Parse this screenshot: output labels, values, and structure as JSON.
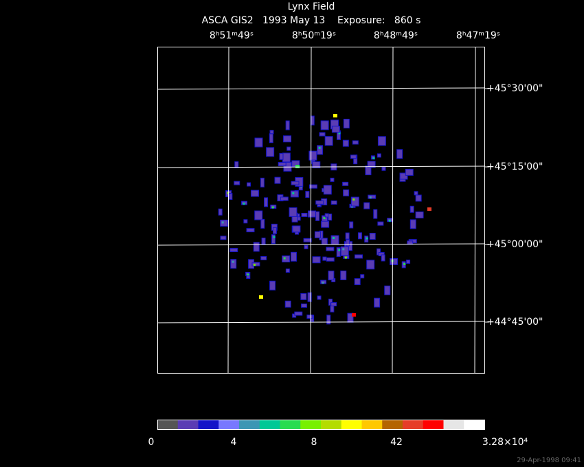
{
  "header": {
    "title": "Lynx Field",
    "subtitle": "ASCA GIS2   1993 May 13    Exposure:   860 s"
  },
  "ra_labels": [
    "8ʰ51ᵐ49ˢ",
    "8ʰ50ᵐ19ˢ",
    "8ʰ48ᵐ49ˢ",
    "8ʰ47ᵐ19ˢ"
  ],
  "dec_labels": [
    "+45°30'00\"",
    "+45°15'00\"",
    "+45°00'00\"",
    "+44°45'00\""
  ],
  "colorbar": {
    "colors": [
      "#555555",
      "#5a3cb4",
      "#1414c8",
      "#7878ff",
      "#3c96b4",
      "#00c896",
      "#28dc50",
      "#78f000",
      "#b4dc00",
      "#ffff00",
      "#ffc800",
      "#b46400",
      "#e63c28",
      "#ff0000",
      "#e6e6e6",
      "#ffffff"
    ],
    "labels": [
      "0",
      "4",
      "8",
      "42",
      "3.28×10⁴"
    ]
  },
  "timestamp": "29-Apr-1998 09:41"
}
